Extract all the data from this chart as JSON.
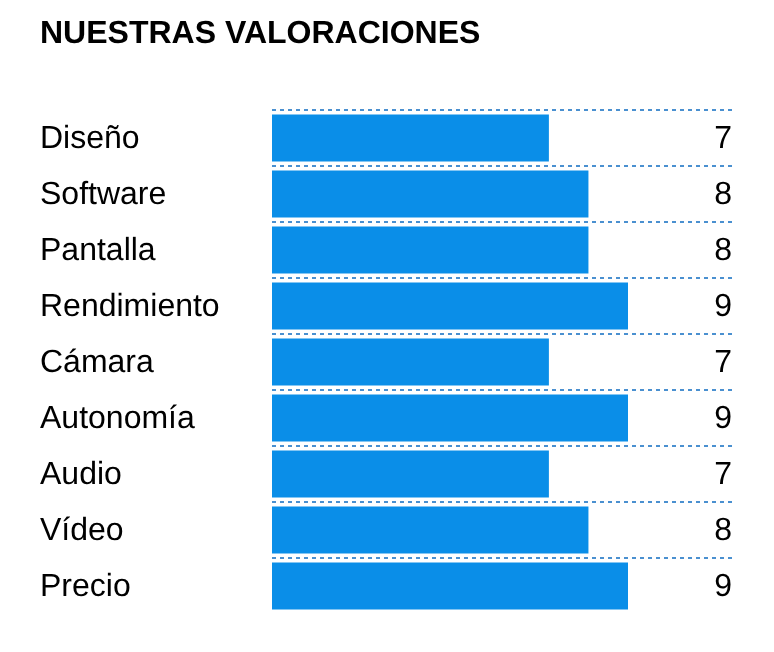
{
  "chart_data": {
    "type": "bar",
    "orientation": "horizontal",
    "title": "NUESTRAS VALORACIONES",
    "categories": [
      "Diseño",
      "Software",
      "Pantalla",
      "Rendimiento",
      "Cámara",
      "Autonomía",
      "Audio",
      "Vídeo",
      "Precio"
    ],
    "values": [
      7,
      8,
      8,
      9,
      7,
      9,
      7,
      8,
      9
    ],
    "color": "#0a8ee8",
    "data_labels": true,
    "grid": "y"
  }
}
